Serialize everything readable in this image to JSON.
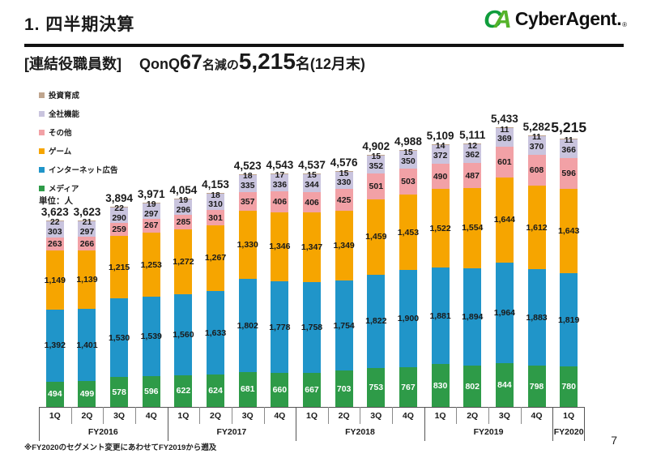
{
  "header": {
    "title": "1. 四半期決算",
    "logo": {
      "mark_c": "C",
      "mark_a": "A",
      "text": "CyberAgent.",
      "registered": "®"
    }
  },
  "subtitle": {
    "bracket": "[連結役職員数]",
    "qonq": "QonQ",
    "delta": "67",
    "mid": "名減の",
    "total": "5,215",
    "tail": "名(12月末)"
  },
  "unit_label": "単位：人",
  "footnote": "※FY2020のセグメント変更にあわせてFY2019から遡及",
  "page_number": "7",
  "legend": {
    "items": [
      {
        "label": "投資育成",
        "color": "#bfa58e"
      },
      {
        "label": "全社機能",
        "color": "#c9c4de"
      },
      {
        "label": "その他",
        "color": "#f2a1a6"
      },
      {
        "label": "ゲーム",
        "color": "#f6a500"
      },
      {
        "label": "インターネット広告",
        "color": "#2095c9"
      },
      {
        "label": "メディア",
        "color": "#2e9b48"
      }
    ]
  },
  "chart_data": {
    "type": "bar",
    "stacked": true,
    "title": "連結役職員数",
    "unit": "人",
    "ylim": [
      0,
      5433
    ],
    "legend_position": "top-left",
    "grid": false,
    "categories": [
      "1Q",
      "2Q",
      "3Q",
      "4Q",
      "1Q",
      "2Q",
      "3Q",
      "4Q",
      "1Q",
      "2Q",
      "3Q",
      "4Q",
      "1Q",
      "2Q",
      "3Q",
      "4Q",
      "1Q"
    ],
    "groups": [
      {
        "label": "FY2016",
        "span": 4
      },
      {
        "label": "FY2017",
        "span": 4
      },
      {
        "label": "FY2018",
        "span": 4
      },
      {
        "label": "FY2019",
        "span": 4
      },
      {
        "label": "FY2020",
        "span": 1
      }
    ],
    "totals": [
      3623,
      3623,
      3894,
      3971,
      4054,
      4153,
      4523,
      4543,
      4537,
      4576,
      4902,
      4988,
      5109,
      5111,
      5433,
      5282,
      5215
    ],
    "series": [
      {
        "name": "メディア",
        "color": "#2e9b48",
        "label_color": "#ffffff",
        "values": [
          494,
          499,
          578,
          596,
          622,
          624,
          681,
          660,
          667,
          703,
          753,
          767,
          830,
          802,
          844,
          798,
          780
        ]
      },
      {
        "name": "インターネット広告",
        "color": "#2095c9",
        "label_color": "#1a1a1a",
        "values": [
          1392,
          1401,
          1530,
          1539,
          1560,
          1633,
          1802,
          1778,
          1758,
          1754,
          1822,
          1900,
          1881,
          1894,
          1964,
          1883,
          1819
        ]
      },
      {
        "name": "ゲーム",
        "color": "#f6a500",
        "label_color": "#1a1a1a",
        "values": [
          1149,
          1139,
          1215,
          1253,
          1272,
          1267,
          1330,
          1346,
          1347,
          1349,
          1459,
          1453,
          1522,
          1554,
          1644,
          1612,
          1643
        ]
      },
      {
        "name": "その他",
        "color": "#f2a1a6",
        "label_color": "#1a1a1a",
        "values": [
          263,
          266,
          259,
          267,
          285,
          301,
          357,
          406,
          406,
          425,
          501,
          503,
          490,
          487,
          601,
          608,
          596
        ]
      },
      {
        "name": "全社機能",
        "color": "#c9c4de",
        "label_color": "#1a1a1a",
        "values": [
          303,
          297,
          290,
          297,
          296,
          310,
          335,
          336,
          344,
          330,
          352,
          350,
          372,
          362,
          369,
          370,
          366
        ]
      },
      {
        "name": "投資育成",
        "color": "#bfa58e",
        "label_color": "#1a1a1a",
        "values": [
          22,
          21,
          22,
          19,
          19,
          18,
          18,
          17,
          15,
          15,
          15,
          15,
          14,
          12,
          11,
          11,
          11
        ]
      }
    ]
  }
}
